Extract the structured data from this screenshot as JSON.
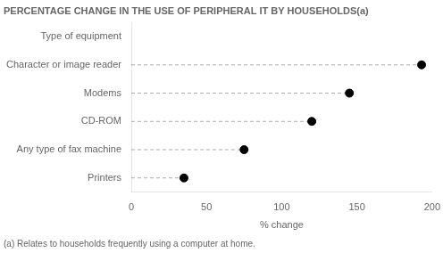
{
  "chart_data": {
    "type": "dot",
    "title": "PERCENTAGE CHANGE IN THE USE OF PERIPHERAL IT BY HOUSEHOLDS(a)",
    "categories": [
      "Type of equipment",
      "Character or image reader",
      "Modems",
      "CD-ROM",
      "Any type of fax machine",
      "Printers"
    ],
    "values": [
      null,
      193,
      145,
      120,
      75,
      35
    ],
    "orientation": "horizontal",
    "xlabel": "% change",
    "xlim": [
      0,
      200
    ],
    "xticks": [
      0,
      50,
      100,
      150,
      200
    ],
    "footnote": "(a) Relates to households frequently using a computer at home.",
    "color": "#000000",
    "marker": "circle",
    "line_style": "dashed",
    "grid": false
  }
}
